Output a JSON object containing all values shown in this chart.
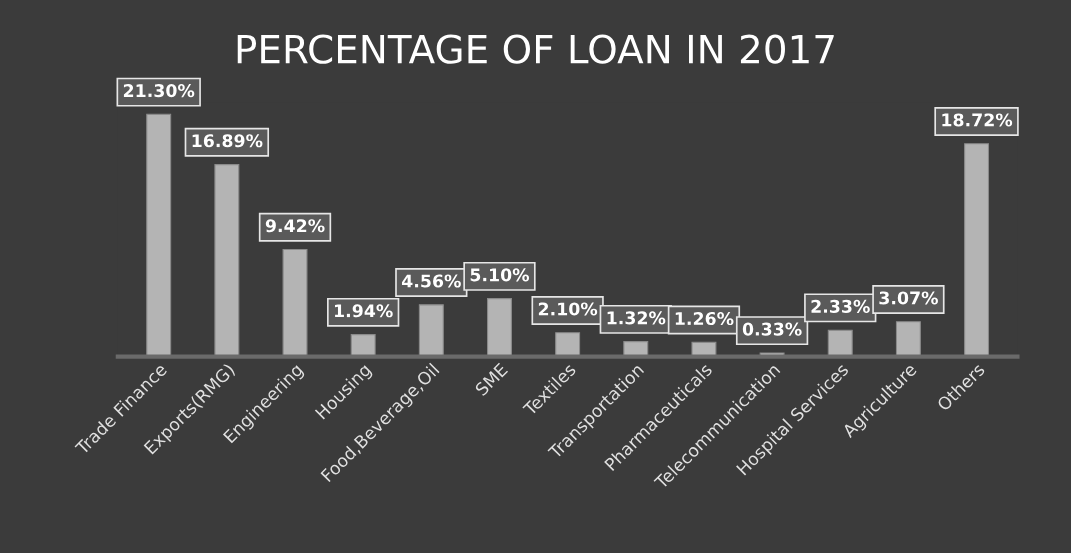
{
  "chart_data": {
    "type": "bar",
    "title": "PERCENTAGE OF LOAN IN 2017",
    "categories": [
      "Trade Finance",
      "Exports(RMG)",
      "Engineering",
      "Housing",
      "Food,Beverage,Oil",
      "SME",
      "Textiles",
      "Transportation",
      "Pharmaceuticals",
      "Telecommunication",
      "Hospital Services",
      "Agriculture",
      "Others"
    ],
    "values": [
      21.3,
      16.89,
      9.42,
      1.94,
      4.56,
      5.1,
      2.1,
      1.32,
      1.26,
      0.33,
      2.33,
      3.07,
      18.72
    ],
    "value_labels": [
      "21.30%",
      "16.89%",
      "9.42%",
      "1.94%",
      "4.56%",
      "5.10%",
      "2.10%",
      "1.32%",
      "1.26%",
      "0.33%",
      "2.33%",
      "3.07%",
      "18.72%"
    ],
    "color": "#b4b4b4",
    "grid": false,
    "legend": false
  }
}
